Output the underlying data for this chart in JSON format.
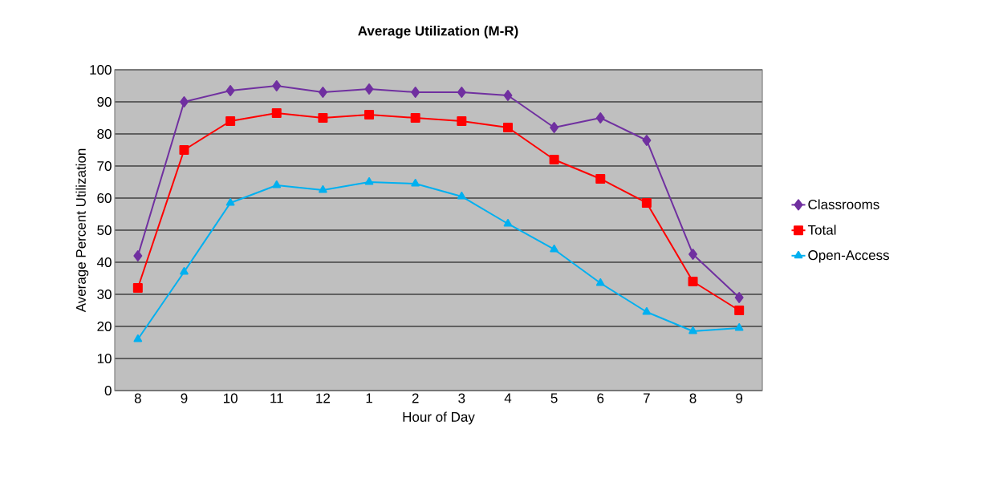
{
  "chart_data": {
    "type": "line",
    "title": "Average Utilization (M-R)",
    "xlabel": "Hour of Day",
    "ylabel": "Average Percent Utilization",
    "categories": [
      "8",
      "9",
      "10",
      "11",
      "12",
      "1",
      "2",
      "3",
      "4",
      "5",
      "6",
      "7",
      "8",
      "9"
    ],
    "series": [
      {
        "name": "Classrooms",
        "color": "#7030a0",
        "marker": "diamond",
        "values": [
          42,
          90,
          93.5,
          95,
          93,
          94,
          93,
          93,
          92,
          82,
          85,
          78,
          42.5,
          29
        ]
      },
      {
        "name": "Total",
        "color": "#ff0000",
        "marker": "square",
        "values": [
          32,
          75,
          84,
          86.5,
          85,
          86,
          85,
          84,
          82,
          72,
          66,
          58.5,
          34,
          25
        ]
      },
      {
        "name": "Open-Access",
        "color": "#00b0f0",
        "marker": "triangle",
        "values": [
          16,
          37,
          58.5,
          64,
          62.5,
          65,
          64.5,
          60.5,
          52,
          44,
          33.5,
          24.5,
          18.5,
          19.5
        ]
      }
    ],
    "ylim": [
      0,
      100
    ],
    "yticks": [
      0,
      10,
      20,
      30,
      40,
      50,
      60,
      70,
      80,
      90,
      100
    ],
    "grid": "y",
    "legend": "right",
    "line_style": "solid"
  }
}
